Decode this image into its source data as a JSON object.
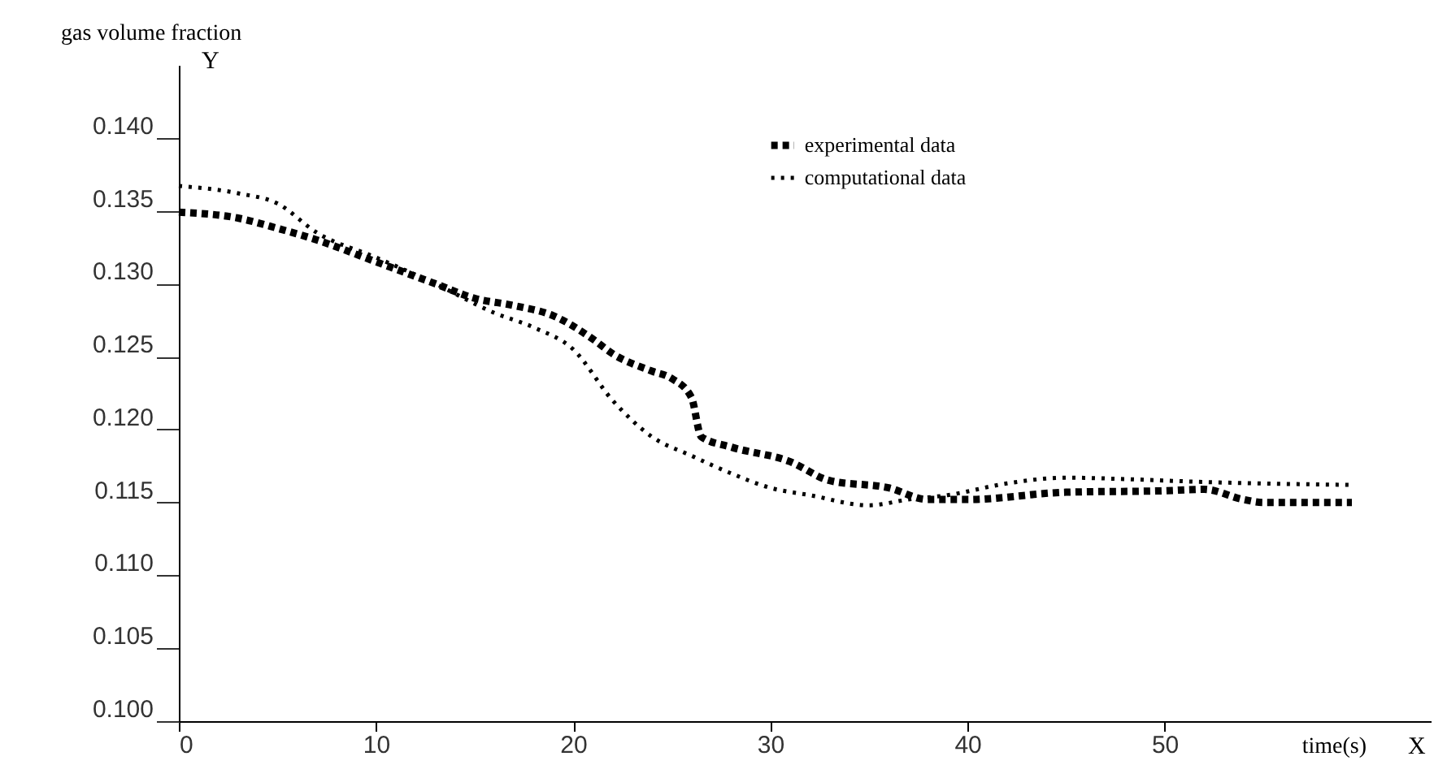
{
  "chart_data": {
    "type": "line",
    "xlabel": "time(s)",
    "ylabel": "gas volume fraction",
    "annotations": [
      "Y",
      "X"
    ],
    "xlim": [
      0,
      63.5
    ],
    "xticks": [
      0,
      10,
      20,
      30,
      40,
      50
    ],
    "ylim": [
      0.1,
      0.145
    ],
    "yticks": [
      {
        "value": 0.1,
        "label": "0.100"
      },
      {
        "value": 0.105,
        "label": "0.105"
      },
      {
        "value": 0.11,
        "label": "0.110"
      },
      {
        "value": 0.115,
        "label": "0.115"
      },
      {
        "value": 0.12,
        "label": "0.120"
      },
      {
        "value": 0.125,
        "label": "0.125"
      },
      {
        "value": 0.13,
        "label": "0.130"
      },
      {
        "value": 0.135,
        "label": "0.135"
      },
      {
        "value": 0.14,
        "label": "0.140"
      }
    ],
    "legend": "top",
    "grid": false,
    "series": [
      {
        "name": "experimental data",
        "color": "#000000",
        "line_style": "dashed",
        "x": [
          0,
          3,
          5,
          7,
          10,
          13,
          15,
          17,
          19,
          21,
          22,
          24,
          25,
          26,
          26.5,
          28,
          31,
          33,
          36,
          38,
          40,
          45,
          50,
          52,
          54,
          55,
          59.5
        ],
        "values": [
          0.1349,
          0.1345,
          0.1338,
          0.133,
          0.1315,
          0.13,
          0.129,
          0.1285,
          0.1278,
          0.1262,
          0.1252,
          0.124,
          0.1235,
          0.1222,
          0.1195,
          0.1188,
          0.1178,
          0.1165,
          0.116,
          0.1152,
          0.1152,
          0.1157,
          0.1158,
          0.1159,
          0.1152,
          0.115,
          0.115
        ]
      },
      {
        "name": "computational data",
        "color": "#000000",
        "line_style": "dotted",
        "x": [
          0,
          3,
          5,
          7,
          10,
          13,
          16,
          18,
          20,
          22,
          24,
          26,
          28,
          30,
          32,
          35,
          37,
          39,
          42,
          45,
          48,
          52,
          55,
          59.5
        ],
        "values": [
          0.1367,
          0.1362,
          0.1355,
          0.1335,
          0.1318,
          0.13,
          0.128,
          0.127,
          0.1255,
          0.122,
          0.1195,
          0.1182,
          0.117,
          0.116,
          0.1155,
          0.1148,
          0.1152,
          0.1155,
          0.1163,
          0.1167,
          0.1166,
          0.1164,
          0.1163,
          0.1162
        ]
      }
    ]
  }
}
